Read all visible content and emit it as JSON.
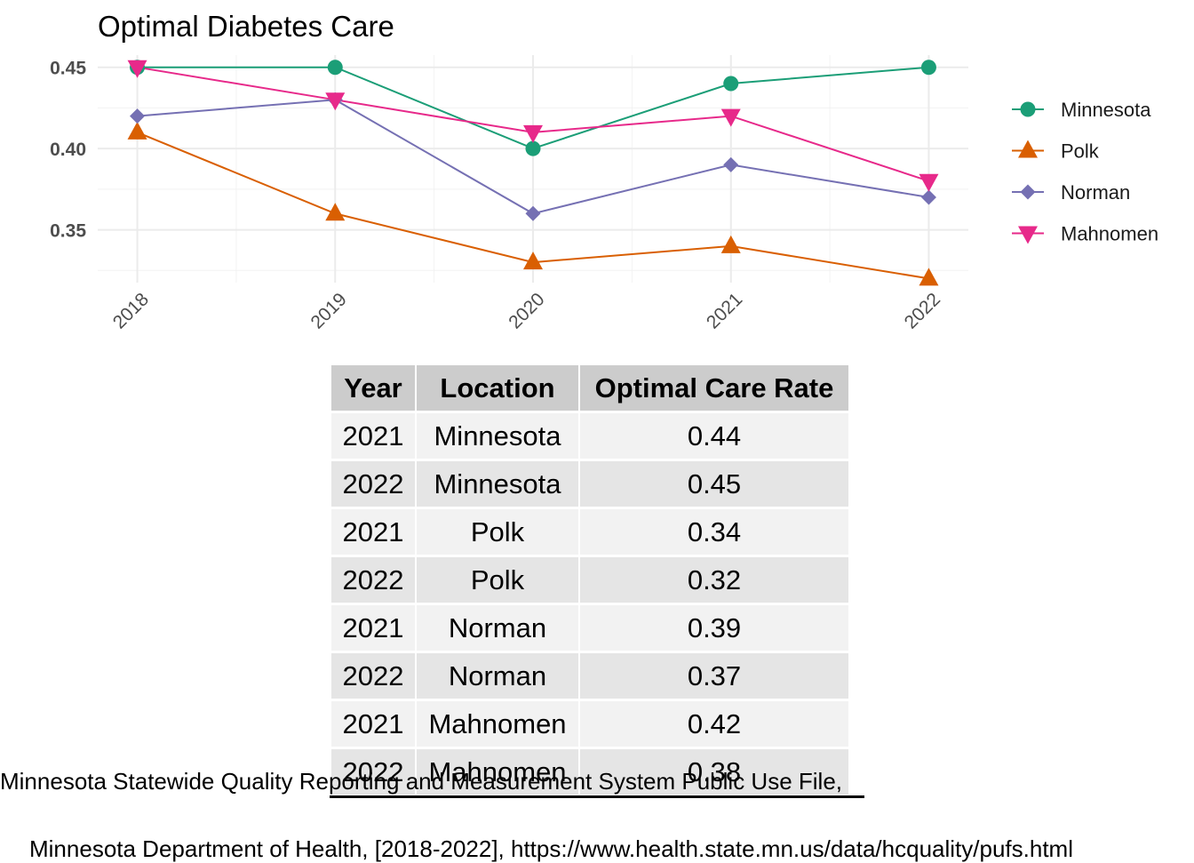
{
  "chart_data": {
    "type": "line",
    "title": "Optimal Diabetes Care",
    "xlabel": "",
    "ylabel": "",
    "categories": [
      "2018",
      "2019",
      "2020",
      "2021",
      "2022"
    ],
    "yticks": [
      "0.35",
      "0.40",
      "0.45"
    ],
    "ylim": [
      0.3175,
      0.4575
    ],
    "grid": true,
    "legend_position": "right",
    "series": [
      {
        "name": "Minnesota",
        "values": [
          0.45,
          0.45,
          0.4,
          0.44,
          0.45
        ],
        "color": "#1B9E77",
        "marker": "circle"
      },
      {
        "name": "Polk",
        "values": [
          0.41,
          0.36,
          0.33,
          0.34,
          0.32
        ],
        "color": "#D95F02",
        "marker": "triangle-up"
      },
      {
        "name": "Norman",
        "values": [
          0.42,
          0.43,
          0.36,
          0.39,
          0.37
        ],
        "color": "#7570B3",
        "marker": "diamond"
      },
      {
        "name": "Mahnomen",
        "values": [
          0.45,
          0.43,
          0.41,
          0.42,
          0.38
        ],
        "color": "#E7298A",
        "marker": "triangle-down"
      }
    ]
  },
  "table": {
    "headers": [
      "Year",
      "Location",
      "Optimal Care Rate"
    ],
    "rows": [
      [
        "2021",
        "Minnesota",
        "0.44"
      ],
      [
        "2022",
        "Minnesota",
        "0.45"
      ],
      [
        "2021",
        "Polk",
        "0.34"
      ],
      [
        "2022",
        "Polk",
        "0.32"
      ],
      [
        "2021",
        "Norman",
        "0.39"
      ],
      [
        "2022",
        "Norman",
        "0.37"
      ],
      [
        "2021",
        "Mahnomen",
        "0.42"
      ],
      [
        "2022",
        "Mahnomen",
        "0.38"
      ]
    ]
  },
  "caption": {
    "line1": "Minnesota Statewide Quality Reporting and Measurement System Public Use File,",
    "line2": "Minnesota Department of Health, [2018-2022], https://www.health.state.mn.us/data/hcquality/pufs.html"
  }
}
